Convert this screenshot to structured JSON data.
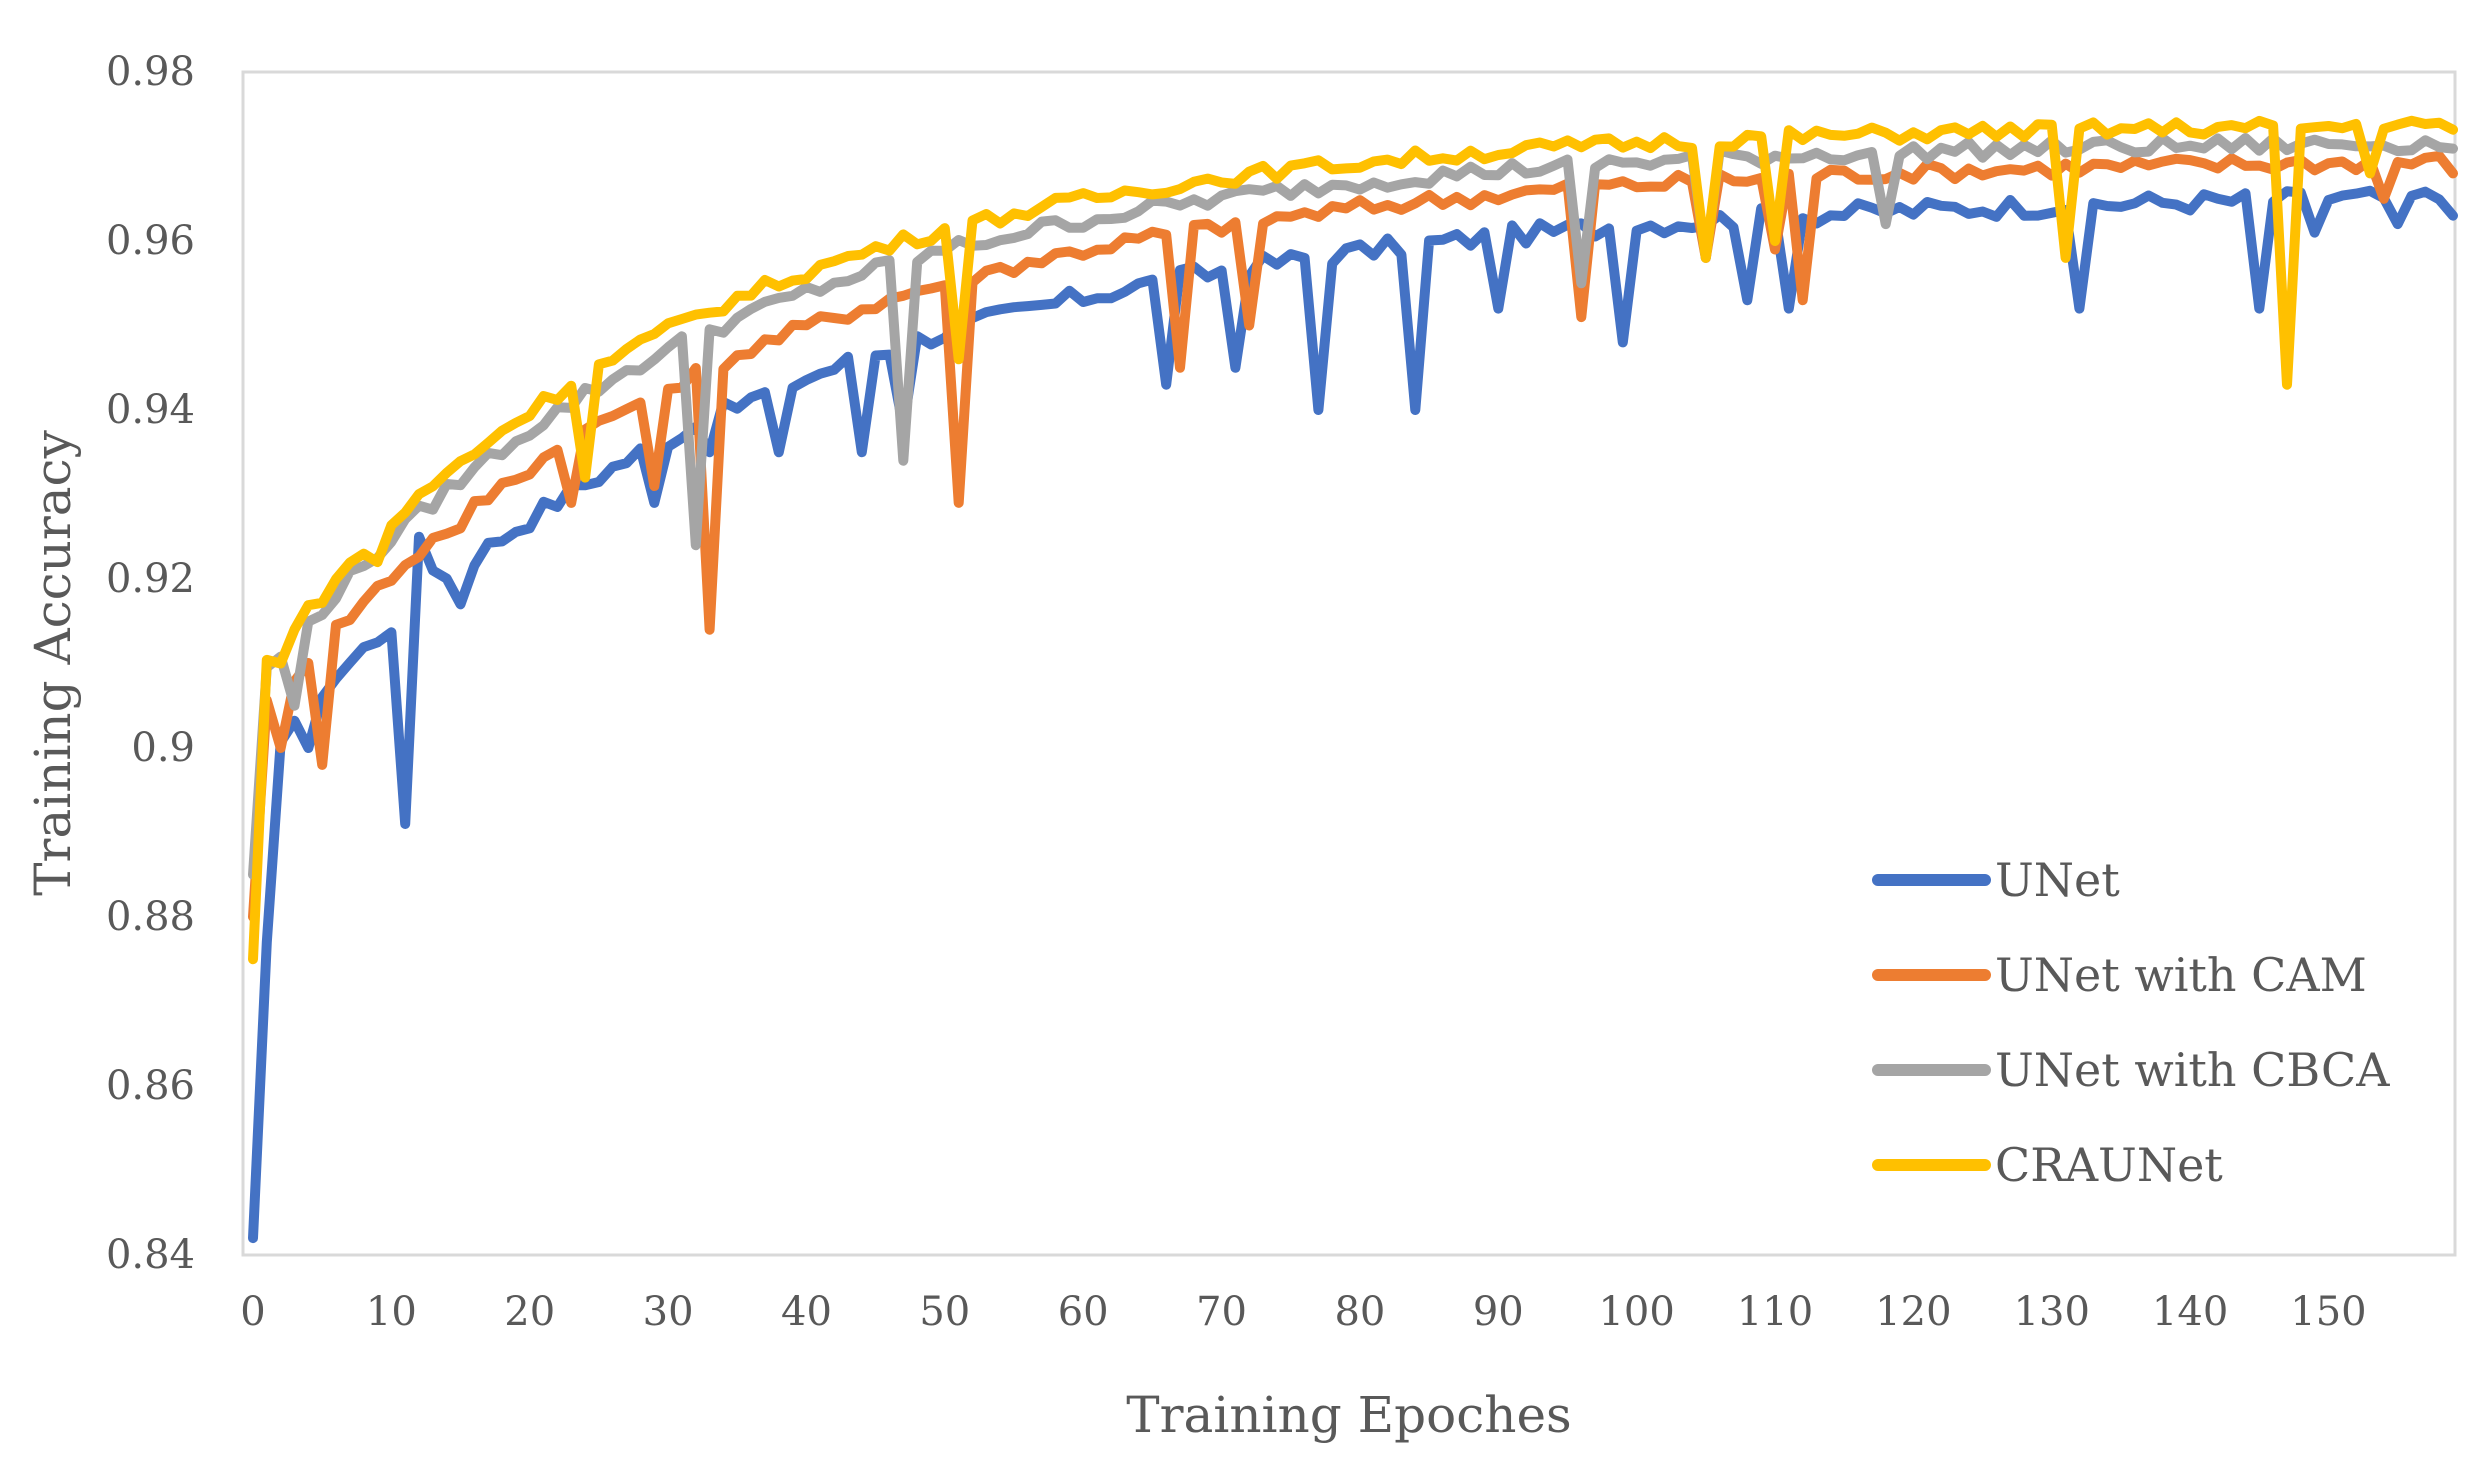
{
  "chart_data": {
    "type": "line",
    "title": "",
    "xlabel": "Training Epoches",
    "ylabel": "Training Accuracy",
    "xlim": [
      0,
      159
    ],
    "ylim": [
      0.84,
      0.98
    ],
    "x_ticks": [
      0,
      10,
      20,
      30,
      40,
      50,
      60,
      70,
      80,
      90,
      100,
      110,
      120,
      130,
      140,
      150
    ],
    "y_ticks": [
      0.84,
      0.86,
      0.88,
      0.9,
      0.92,
      0.94,
      0.96,
      0.98
    ],
    "y_tick_labels": [
      "0.84",
      "0.86",
      "0.88",
      "0.9",
      "0.92",
      "0.94",
      "0.96",
      "0.98"
    ],
    "grid": false,
    "legend_position": "bottom-right",
    "series": [
      {
        "name": "UNet",
        "color": "#4472C4",
        "base": {
          "a": 0.898,
          "b": 0.068,
          "k": 0.028
        },
        "noise": 0.0012,
        "dips": {
          "1": 0.877,
          "4": 0.9,
          "11": 0.891,
          "12": 0.925,
          "13": 0.921,
          "15": 0.917,
          "20": 0.926,
          "29": 0.929,
          "33": 0.935,
          "38": 0.935,
          "44": 0.935,
          "47": 0.938,
          "66": 0.943,
          "71": 0.945,
          "77": 0.94,
          "84": 0.94,
          "90": 0.952,
          "99": 0.948,
          "108": 0.953,
          "111": 0.952,
          "132": 0.952,
          "145": 0.952,
          "149": 0.961,
          "155": 0.962,
          "159": 0.963
        }
      },
      {
        "name": "UNet with CAM",
        "color": "#ED7D31",
        "base": {
          "a": 0.903,
          "b": 0.067,
          "k": 0.03
        },
        "noise": 0.001,
        "dips": {
          "2": 0.9,
          "5": 0.898,
          "15": 0.926,
          "23": 0.929,
          "29": 0.931,
          "33": 0.914,
          "51": 0.929,
          "67": 0.945,
          "72": 0.95,
          "96": 0.951,
          "105": 0.958,
          "110": 0.959,
          "112": 0.953,
          "154": 0.965,
          "159": 0.968
        }
      },
      {
        "name": "UNet with CBCA",
        "color": "#A5A5A5",
        "base": {
          "a": 0.907,
          "b": 0.065,
          "k": 0.032
        },
        "noise": 0.001,
        "dips": {
          "3": 0.905,
          "32": 0.924,
          "47": 0.934,
          "96": 0.955,
          "105": 0.958,
          "118": 0.962
        }
      },
      {
        "name": "CRAUNet",
        "color": "#FFC000",
        "base": {
          "a": 0.908,
          "b": 0.066,
          "k": 0.033
        },
        "noise": 0.0009,
        "dips": {
          "0": 0.875,
          "2": 0.91,
          "9": 0.922,
          "24": 0.932,
          "51": 0.946,
          "105": 0.958,
          "110": 0.96,
          "131": 0.958,
          "147": 0.943,
          "153": 0.968
        }
      }
    ],
    "legend": [
      {
        "label": "UNet",
        "color": "#4472C4"
      },
      {
        "label": "UNet with CAM",
        "color": "#ED7D31"
      },
      {
        "label": "UNet with CBCA",
        "color": "#A5A5A5"
      },
      {
        "label": "CRAUNet",
        "color": "#FFC000"
      }
    ],
    "start_values": {
      "UNet": 0.842,
      "UNet with CAM": 0.88,
      "UNet with CBCA": 0.885,
      "CRAUNet": 0.875
    },
    "axis_color": "#D9D9D9"
  }
}
